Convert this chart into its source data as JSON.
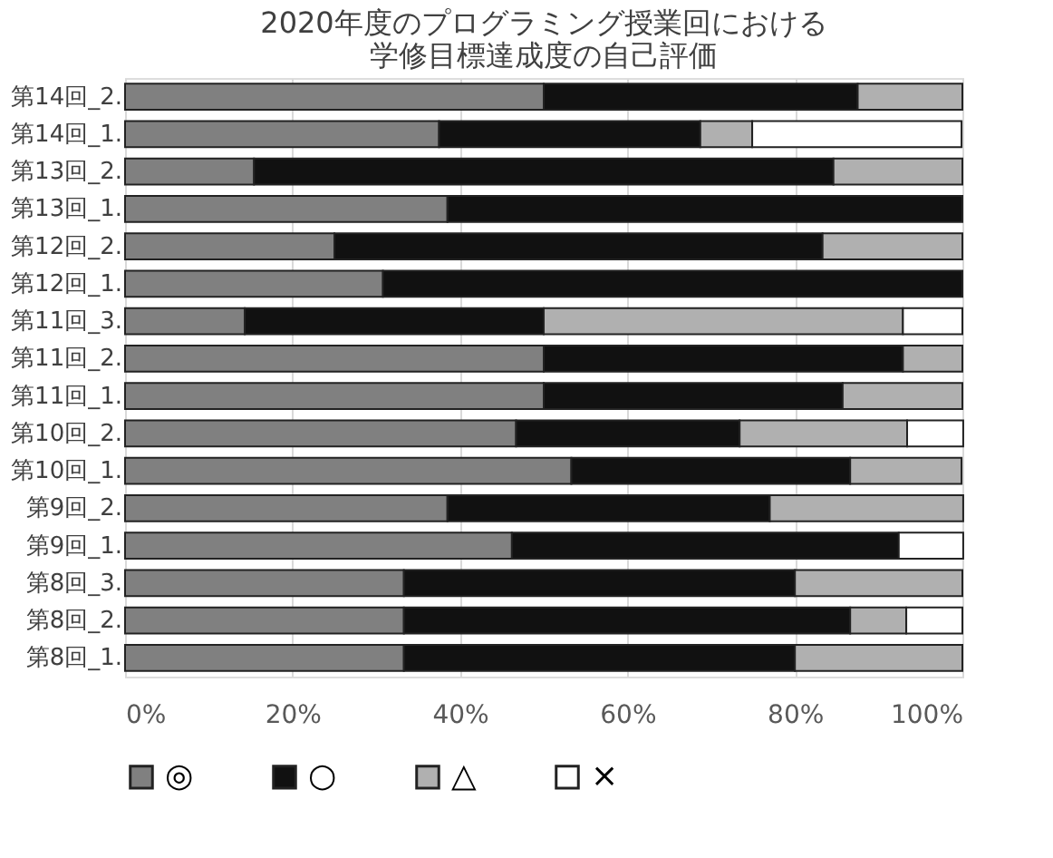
{
  "chart_data": {
    "type": "bar",
    "orientation": "horizontal",
    "stacked": true,
    "title": "2020年度のプログラミング授業回における学修目標達成度の自己評価",
    "categories": [
      "第14回_2.",
      "第14回_1.",
      "第13回_2.",
      "第13回_1.",
      "第12回_2.",
      "第12回_1.",
      "第11回_3.",
      "第11回_2.",
      "第11回_1.",
      "第10回_2.",
      "第10回_1.",
      "第9回_2.",
      "第9回_1.",
      "第8回_3.",
      "第8回_2.",
      "第8回_1."
    ],
    "series": [
      {
        "name": "◎",
        "color": "#808080",
        "values": [
          50,
          37.5,
          15.4,
          38.5,
          25,
          30.8,
          14.3,
          50,
          50,
          46.7,
          53.3,
          38.5,
          46.2,
          33.3,
          33.3,
          33.3
        ]
      },
      {
        "name": "○",
        "color": "#111111",
        "values": [
          37.5,
          31.2,
          69.2,
          61.5,
          58.3,
          69.2,
          35.7,
          42.9,
          35.7,
          26.7,
          33.3,
          38.5,
          46.2,
          46.7,
          53.3,
          46.7
        ]
      },
      {
        "name": "△",
        "color": "#b0b0b0",
        "values": [
          12.5,
          6.2,
          15.4,
          0,
          16.7,
          0,
          42.9,
          7.1,
          14.3,
          20,
          13.3,
          23.1,
          0,
          20,
          6.7,
          20
        ]
      },
      {
        "name": "×",
        "color": "#ffffff",
        "values": [
          0,
          25,
          0,
          0,
          0,
          0,
          7.1,
          0,
          0,
          6.7,
          0,
          0,
          7.7,
          0,
          6.7,
          0
        ]
      }
    ],
    "xlim": [
      0,
      100
    ],
    "xticks": [
      {
        "value": 0,
        "label": "0%"
      },
      {
        "value": 20,
        "label": "20%"
      },
      {
        "value": 40,
        "label": "40%"
      },
      {
        "value": 60,
        "label": "60%"
      },
      {
        "value": 80,
        "label": "80%"
      },
      {
        "value": 100,
        "label": "100%"
      }
    ],
    "grid": "x",
    "legend": "bottom"
  }
}
